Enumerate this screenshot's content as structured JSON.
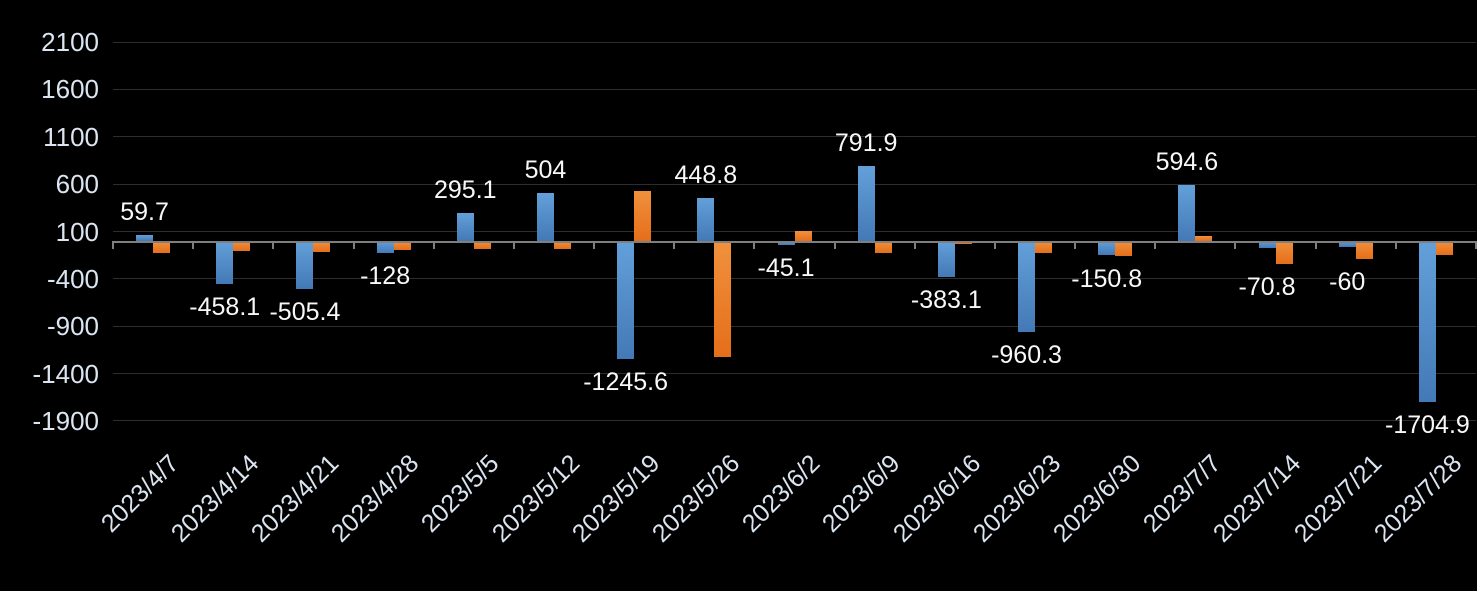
{
  "chart_data": {
    "type": "bar",
    "title": "",
    "categories": [
      "2023/4/7",
      "2023/4/14",
      "2023/4/21",
      "2023/4/28",
      "2023/5/5",
      "2023/5/12",
      "2023/5/19",
      "2023/5/26",
      "2023/6/2",
      "2023/6/9",
      "2023/6/16",
      "2023/6/23",
      "2023/6/30",
      "2023/7/7",
      "2023/7/14",
      "2023/7/21",
      "2023/7/28"
    ],
    "series": [
      {
        "name": "blue",
        "color": "#5B9BD5",
        "data_labels": true,
        "values": [
          59.7,
          -458.1,
          -505.4,
          -128,
          295.1,
          504,
          -1245.6,
          448.8,
          -45.1,
          791.9,
          -383.1,
          -960.3,
          -150.8,
          594.6,
          -70.8,
          -60,
          -1704.9
        ]
      },
      {
        "name": "orange",
        "color": "#ED7D31",
        "data_labels": false,
        "values": [
          -130,
          -110,
          -120,
          -90,
          -85,
          -85,
          530,
          -1230,
          105,
          -130,
          -30,
          -130,
          -155,
          50,
          -240,
          -195,
          -150
        ]
      }
    ],
    "data_label_texts": [
      "59.7",
      "-458.1",
      "-505.4",
      "-128",
      "295.1",
      "504",
      "-1245.6",
      "448.8",
      "-45.1",
      "791.9",
      "-383.1",
      "-960.3",
      "-150.8",
      "594.6",
      "-70.8",
      "-60",
      "-1704.9"
    ],
    "yticks": [
      2100,
      1600,
      1100,
      600,
      100,
      -400,
      -900,
      -1400,
      -1900
    ],
    "ylim": [
      -1900,
      2100
    ],
    "grid": true,
    "legend_position": "none",
    "xlabel": "",
    "ylabel": "",
    "colors": {
      "background": "#000000",
      "gridline": "#2d2d2d",
      "axis_line": "#7f7f7f",
      "axis_text": "#dbe5f1",
      "value_label_text": "#f8f8f8"
    }
  }
}
